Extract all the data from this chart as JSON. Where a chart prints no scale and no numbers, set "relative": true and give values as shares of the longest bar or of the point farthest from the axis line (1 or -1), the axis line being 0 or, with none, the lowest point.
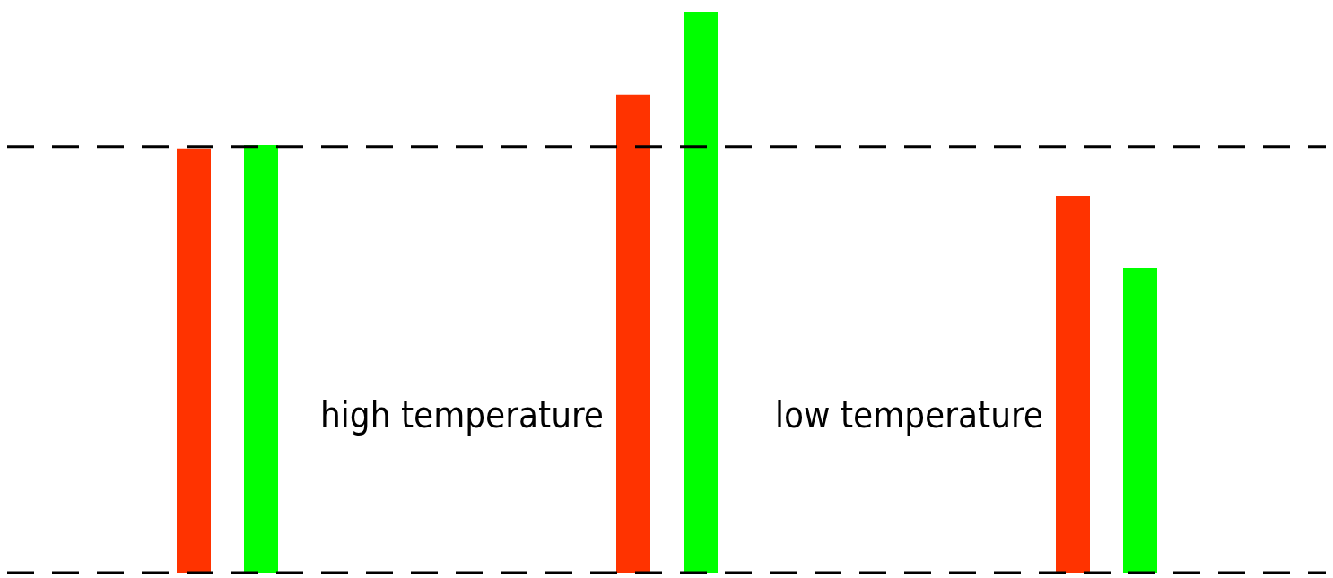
{
  "chart_data": {
    "type": "bar",
    "relative": true,
    "categories": [
      null,
      null,
      null
    ],
    "series": [
      {
        "color": "#ff3300",
        "values": [
          0.756,
          0.852,
          0.671
        ]
      },
      {
        "color": "#00ff00",
        "values": [
          0.762,
          1.0,
          0.543
        ]
      }
    ],
    "annotations": [
      "high temperature",
      "low temperature"
    ],
    "ref_lines": [
      {
        "axis": "y",
        "value": 0,
        "color": "#000000",
        "line_style": "dashed"
      },
      {
        "axis": "y",
        "value": 0.759,
        "color": "#000000",
        "line_style": "dashed"
      }
    ],
    "grid": false,
    "legend": false
  }
}
